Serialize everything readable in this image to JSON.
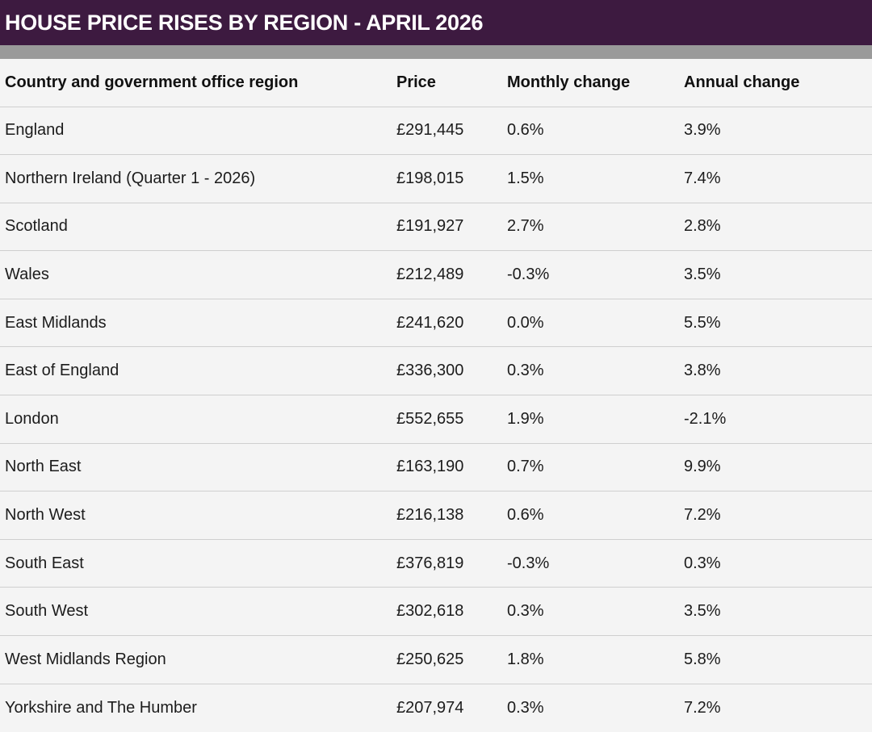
{
  "title": "HOUSE PRICE RISES BY REGION - APRIL 2026",
  "table": {
    "headers": [
      "Country and government office region",
      "Price",
      "Monthly change",
      "Annual change"
    ],
    "rows": [
      [
        "England",
        "£291,445",
        "0.6%",
        "3.9%"
      ],
      [
        "Northern Ireland (Quarter 1 - 2026)",
        "£198,015",
        "1.5%",
        "7.4%"
      ],
      [
        "Scotland",
        "£191,927",
        "2.7%",
        "2.8%"
      ],
      [
        "Wales",
        "£212,489",
        "-0.3%",
        "3.5%"
      ],
      [
        "East Midlands",
        "£241,620",
        "0.0%",
        "5.5%"
      ],
      [
        "East of England",
        "£336,300",
        "0.3%",
        "3.8%"
      ],
      [
        "London",
        "£552,655",
        "1.9%",
        "-2.1%"
      ],
      [
        "North East",
        "£163,190",
        "0.7%",
        "9.9%"
      ],
      [
        "North West",
        "£216,138",
        "0.6%",
        "7.2%"
      ],
      [
        "South East",
        "£376,819",
        "-0.3%",
        "0.3%"
      ],
      [
        "South West",
        "£302,618",
        "0.3%",
        "3.5%"
      ],
      [
        "West Midlands Region",
        "£250,625",
        "1.8%",
        "5.8%"
      ],
      [
        "Yorkshire and The Humber",
        "£207,974",
        "0.3%",
        "7.2%"
      ]
    ]
  },
  "colors": {
    "title_bar": "#3d1a40",
    "divider_band": "#9a9a9a",
    "background": "#f4f4f4",
    "row_border": "#cfcfcf"
  }
}
